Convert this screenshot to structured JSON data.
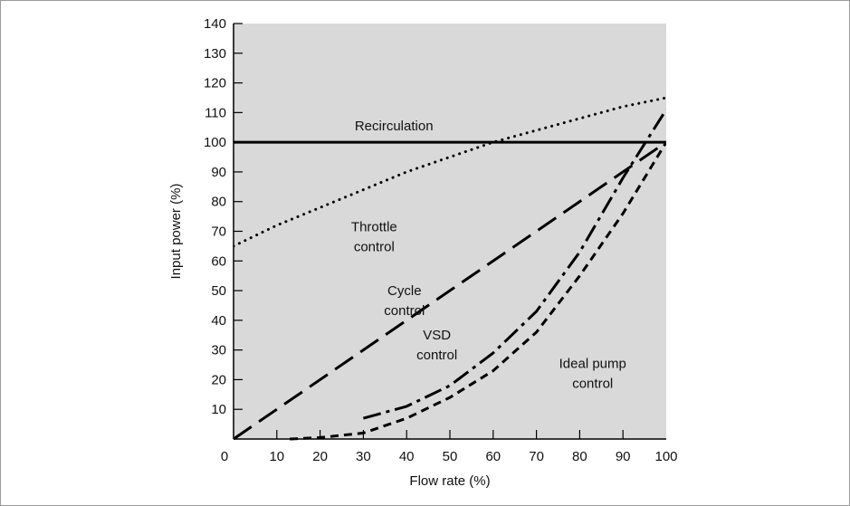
{
  "chart_data": {
    "type": "line",
    "xlabel": "Flow rate (%)",
    "ylabel": "Input power (%)",
    "xlim": [
      0,
      100
    ],
    "ylim": [
      0,
      140
    ],
    "xticks": [
      0,
      10,
      20,
      30,
      40,
      50,
      60,
      70,
      80,
      90,
      100
    ],
    "yticks": [
      10,
      20,
      30,
      40,
      50,
      60,
      70,
      80,
      90,
      100,
      110,
      120,
      130,
      140
    ],
    "grid": false,
    "plot_background": "#d9d9d9",
    "line_color": "#000000",
    "series": [
      {
        "style": "solid",
        "x": [
          0,
          100
        ],
        "y": [
          100,
          100
        ]
      },
      {
        "style": "dotted",
        "x": [
          0,
          10,
          20,
          30,
          40,
          50,
          60,
          70,
          80,
          90,
          100
        ],
        "y": [
          65,
          72,
          78,
          84,
          90,
          95,
          100,
          104,
          108,
          112,
          115
        ]
      },
      {
        "style": "dashed",
        "x": [
          0,
          100
        ],
        "y": [
          0,
          100
        ]
      },
      {
        "style": "dash-dot",
        "x": [
          30,
          40,
          50,
          60,
          70,
          80,
          90,
          100
        ],
        "y": [
          7,
          11,
          18,
          29,
          43,
          63,
          88,
          111
        ]
      },
      {
        "style": "short-dash",
        "x": [
          13,
          20,
          30,
          40,
          50,
          60,
          70,
          80,
          90,
          100
        ],
        "y": [
          0,
          0.5,
          2,
          7,
          14,
          23,
          36,
          55,
          76,
          100
        ]
      }
    ],
    "annotations": [
      {
        "lines": [
          "Recirculation"
        ],
        "x": 28,
        "y": 104,
        "align": "start"
      },
      {
        "lines": [
          "Throttle",
          "control"
        ],
        "x": 32.5,
        "y": 70,
        "align": "middle"
      },
      {
        "lines": [
          "Cycle",
          "control"
        ],
        "x": 39.5,
        "y": 48.5,
        "align": "middle"
      },
      {
        "lines": [
          "VSD",
          "control"
        ],
        "x": 47,
        "y": 33.5,
        "align": "middle"
      },
      {
        "lines": [
          "Ideal pump",
          "control"
        ],
        "x": 83,
        "y": 24,
        "align": "middle"
      }
    ]
  }
}
